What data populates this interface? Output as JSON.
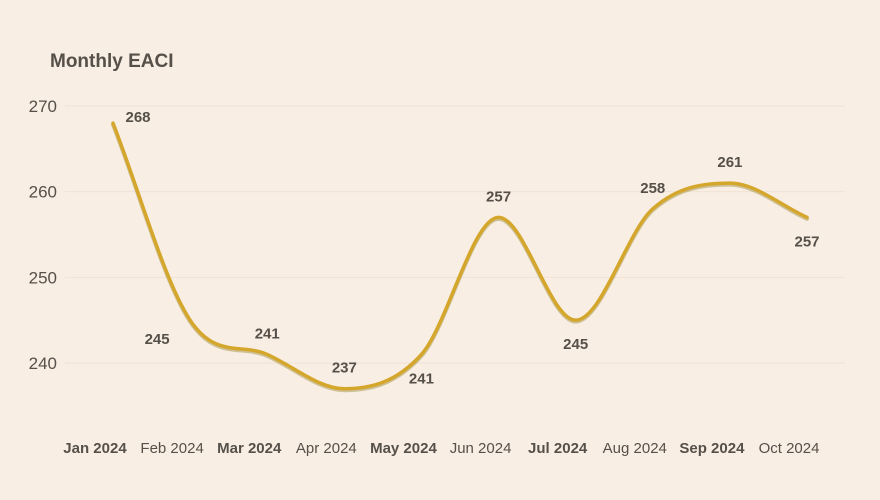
{
  "chart_data": {
    "type": "line",
    "title": "Monthly EACI",
    "xlabel": "",
    "ylabel": "",
    "categories": [
      "Jan 2024",
      "Feb  2024",
      "Mar 2024",
      "Apr 2024",
      "May 2024",
      "Jun 2024",
      "Jul 2024",
      "Aug 2024",
      "Sep 2024",
      "Oct 2024"
    ],
    "bold_categories": [
      true,
      false,
      true,
      false,
      true,
      false,
      true,
      false,
      true,
      false
    ],
    "series": [
      {
        "values": [
          268,
          245,
          241,
          237,
          241,
          257,
          245,
          258,
          261,
          257
        ]
      }
    ],
    "y_ticks": [
      240,
      250,
      260,
      270
    ],
    "ylim": [
      235,
      271
    ],
    "grid": true,
    "line_color": "#d4a72c",
    "line_shadow_color": "#9a8a3a",
    "background": "#f9eee4",
    "label_positions": [
      "right",
      "below-left",
      "above",
      "above",
      "below",
      "above",
      "below",
      "above",
      "above",
      "below"
    ]
  }
}
